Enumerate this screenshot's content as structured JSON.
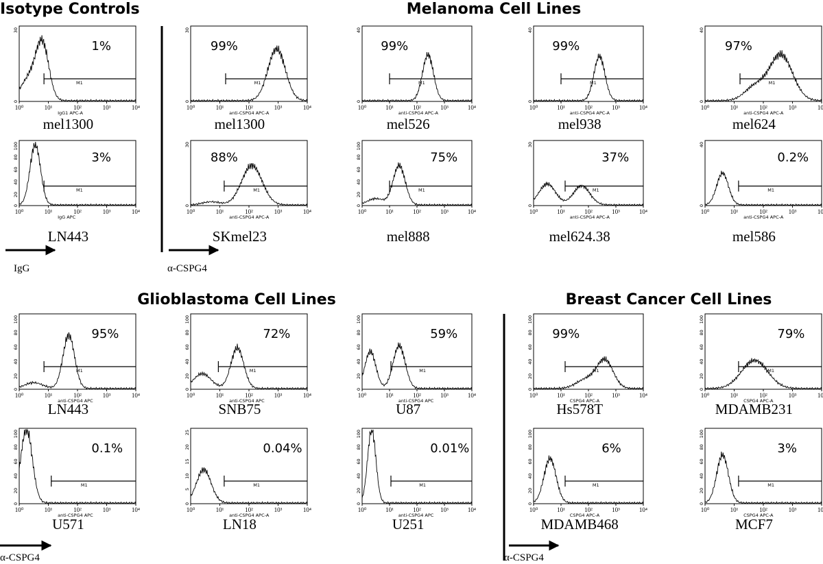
{
  "sections": [
    {
      "title": "Isotype  Controls"
    },
    {
      "title": "Melanoma Cell Lines"
    },
    {
      "title": "Glioblastoma Cell Lines"
    },
    {
      "title": "Breast Cancer Cell Lines"
    }
  ],
  "axis_ticks": [
    "10⁰",
    "10¹",
    "10²",
    "10³",
    "10⁴"
  ],
  "gate_label": "M1",
  "arrows": [
    {
      "label": "IgG"
    },
    {
      "label": "α-CSPG4"
    },
    {
      "label": "α-CSPG4"
    },
    {
      "label": "α-CSPG4"
    }
  ],
  "panels": [
    {
      "name": "mel1300",
      "percent": "1%",
      "x_label": "IgG1 APC-A",
      "y_ticks": [
        "0",
        "30"
      ]
    },
    {
      "name": "mel1300",
      "percent": "99%",
      "x_label": "anti-CSPG4 APC-A",
      "y_ticks": [
        "0",
        "30"
      ]
    },
    {
      "name": "mel526",
      "percent": "99%",
      "x_label": "anti-CSPG4 APC-A",
      "y_ticks": [
        "0",
        "40"
      ]
    },
    {
      "name": "mel938",
      "percent": "99%",
      "x_label": "anti-CSPG4 APC-A",
      "y_ticks": [
        "0",
        "40"
      ]
    },
    {
      "name": "mel624",
      "percent": "97%",
      "x_label": "anti-CSPG4 APC-A",
      "y_ticks": [
        "0",
        "40"
      ]
    },
    {
      "name": "LN443",
      "percent": "3%",
      "x_label": "IgG APC",
      "y_ticks": [
        "0",
        "20",
        "40",
        "60",
        "80",
        "100"
      ]
    },
    {
      "name": "SKmel23",
      "percent": "88%",
      "x_label": "anti-CSPG4 APC-A",
      "y_ticks": [
        "0",
        "30"
      ]
    },
    {
      "name": "mel888",
      "percent": "75%",
      "x_label": "",
      "y_ticks": [
        "0",
        "20",
        "40",
        "60",
        "80",
        "100"
      ]
    },
    {
      "name": "mel624.38",
      "percent": "37%",
      "x_label": "anti-CSPG4 APC-A",
      "y_ticks": [
        "0",
        "30"
      ]
    },
    {
      "name": "mel586",
      "percent": "0.2%",
      "x_label": "anti-CSPG4 APC-A",
      "y_ticks": [
        "0",
        "40"
      ]
    },
    {
      "name": "LN443",
      "percent": "95%",
      "x_label": "anti-CSPG4 APC",
      "y_ticks": [
        "0",
        "20",
        "40",
        "60",
        "80",
        "100"
      ]
    },
    {
      "name": "SNB75",
      "percent": "72%",
      "x_label": "anti-CSPG4 APC",
      "y_ticks": [
        "0",
        "20",
        "40",
        "60",
        "80",
        "100"
      ]
    },
    {
      "name": "U87",
      "percent": "59%",
      "x_label": "anti-CSPG4 APC",
      "y_ticks": [
        "0",
        "20",
        "40",
        "60",
        "80",
        "100"
      ]
    },
    {
      "name": "Hs578T",
      "percent": "99%",
      "x_label": "CSPG4 APC-A",
      "y_ticks": [
        "0",
        "20",
        "40",
        "60",
        "80",
        "100"
      ]
    },
    {
      "name": "MDAMB231",
      "percent": "79%",
      "x_label": "CSPG4 APC-A",
      "y_ticks": [
        "0",
        "20",
        "40",
        "60",
        "80",
        "100"
      ]
    },
    {
      "name": "U571",
      "percent": "0.1%",
      "x_label": "anti-CSPG4 APC",
      "y_ticks": [
        "0",
        "20",
        "40",
        "60",
        "80",
        "100"
      ]
    },
    {
      "name": "LN18",
      "percent": "0.04%",
      "x_label": "anti-CSPG4 APC-A",
      "y_ticks": [
        "0",
        "5",
        "10",
        "15",
        "20",
        "25"
      ]
    },
    {
      "name": "U251",
      "percent": "0.01%",
      "x_label": "anti-CSPG4 APC",
      "y_ticks": [
        "0",
        "20",
        "40",
        "60",
        "80",
        "100"
      ]
    },
    {
      "name": "MDAMB468",
      "percent": "6%",
      "x_label": "CSPG4 APC-A",
      "y_ticks": [
        "0",
        "20",
        "40",
        "60",
        "80",
        "100"
      ]
    },
    {
      "name": "MCF7",
      "percent": "3%",
      "x_label": "CSPG4 APC-A",
      "y_ticks": [
        "0",
        "20",
        "40",
        "60",
        "80",
        "100"
      ]
    }
  ]
}
